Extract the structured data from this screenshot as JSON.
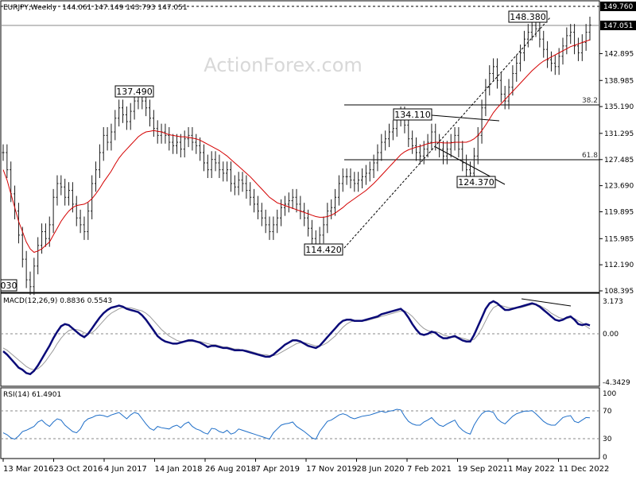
{
  "watermark": "ActionForex.com",
  "colors": {
    "price": "#1a1a1a",
    "sma": "#d40000",
    "macd": "#0a0a78",
    "signal": "#9a9a9a",
    "rsi": "#1e6ec8",
    "frame": "#000000",
    "trend": "#000000"
  },
  "chart_data": [
    {
      "type": "candlestick",
      "title": "EURJPY,Weekly",
      "ohlc": "144.061 147.149 143.793 147.051",
      "current_price_label": "147.051",
      "top_label": "149.760",
      "y_ticks": [
        "142.895",
        "138.985",
        "135.190",
        "131.295",
        "127.485",
        "123.690",
        "119.895",
        "115.985",
        "112.190",
        "108.395"
      ],
      "ylim": [
        108.395,
        149.76
      ],
      "x_ticks": [
        "13 Mar 2016",
        "23 Oct 2016",
        "4 Jun 2017",
        "14 Jan 2018",
        "26 Aug 2018",
        "7 Apr 2019",
        "17 Nov 2019",
        "28 Jun 2020",
        "7 Feb 2021",
        "19 Sep 2021",
        "1 May 2022",
        "11 Dec 2022"
      ],
      "annotations": [
        "148.380",
        "137.490",
        "134.110",
        "124.370",
        "114.420",
        "030"
      ],
      "fib_labels": [
        "38.2",
        "61.8"
      ],
      "fib_levels": [
        135.2,
        127.1
      ],
      "series": [
        {
          "values": [
            128.5,
            126.0,
            122.5,
            120.0,
            116.5,
            113.0,
            110.0,
            109.0,
            112.0,
            115.0,
            117.0,
            116.0,
            118.0,
            122.0,
            124.0,
            123.5,
            122.0,
            123.0,
            121.0,
            119.0,
            118.0,
            117.0,
            120.0,
            124.0,
            126.0,
            128.5,
            131.0,
            130.0,
            131.5,
            133.5,
            135.0,
            134.0,
            133.0,
            134.5,
            136.0,
            137.0,
            136.0,
            135.0,
            133.5,
            132.0,
            131.0,
            131.5,
            131.0,
            130.0,
            129.5,
            130.0,
            129.0,
            130.5,
            131.0,
            130.0,
            129.5,
            128.5,
            127.0,
            126.0,
            127.5,
            127.0,
            126.0,
            125.5,
            126.0,
            124.0,
            123.5,
            124.5,
            124.0,
            123.0,
            122.0,
            121.0,
            120.0,
            119.0,
            118.0,
            117.0,
            118.0,
            119.0,
            120.5,
            121.0,
            121.5,
            122.0,
            121.0,
            120.0,
            119.0,
            117.5,
            116.0,
            115.0,
            116.5,
            118.0,
            120.0,
            120.5,
            122.0,
            124.0,
            125.0,
            125.0,
            124.5,
            124.0,
            124.5,
            125.0,
            125.5,
            126.0,
            127.0,
            128.5,
            130.0,
            130.5,
            131.5,
            132.0,
            133.5,
            134.0,
            132.5,
            130.5,
            129.5,
            128.5,
            128.0,
            129.0,
            130.0,
            131.5,
            130.0,
            129.0,
            128.0,
            129.0,
            130.0,
            131.0,
            129.0,
            127.0,
            126.0,
            125.5,
            128.0,
            131.0,
            135.0,
            138.0,
            140.0,
            141.0,
            139.0,
            137.0,
            136.0,
            138.0,
            140.0,
            141.5,
            143.0,
            145.0,
            146.0,
            147.0,
            146.5,
            145.0,
            143.5,
            142.0,
            141.5,
            141.0,
            142.5,
            144.0,
            145.5,
            146.0,
            144.0,
            143.0,
            144.5,
            146.0,
            147.051
          ],
          "sma": [
            126.0,
            124.5,
            122.5,
            120.5,
            118.5,
            117.0,
            115.5,
            114.5,
            114.0,
            114.2,
            114.5,
            115.0,
            115.5,
            116.5,
            117.5,
            118.5,
            119.3,
            120.0,
            120.5,
            120.8,
            120.9,
            121.0,
            121.3,
            121.8,
            122.5,
            123.3,
            124.2,
            125.0,
            125.8,
            126.8,
            127.7,
            128.4,
            129.0,
            129.6,
            130.2,
            130.8,
            131.2,
            131.5,
            131.6,
            131.7,
            131.6,
            131.5,
            131.3,
            131.1,
            131.0,
            130.9,
            130.8,
            130.8,
            130.7,
            130.6,
            130.5,
            130.3,
            130.0,
            129.7,
            129.4,
            129.1,
            128.8,
            128.4,
            128.0,
            127.5,
            127.0,
            126.5,
            126.0,
            125.5,
            125.0,
            124.4,
            123.8,
            123.2,
            122.6,
            122.0,
            121.6,
            121.2,
            121.0,
            120.8,
            120.6,
            120.4,
            120.2,
            120.0,
            119.8,
            119.6,
            119.4,
            119.2,
            119.1,
            119.1,
            119.2,
            119.4,
            119.7,
            120.1,
            120.5,
            121.0,
            121.4,
            121.8,
            122.2,
            122.6,
            123.0,
            123.5,
            124.0,
            124.6,
            125.2,
            125.8,
            126.4,
            127.0,
            127.6,
            128.2,
            128.6,
            128.9,
            129.1,
            129.3,
            129.4,
            129.6,
            129.8,
            129.9,
            130.0,
            130.0,
            129.9,
            129.9,
            129.9,
            130.0,
            130.0,
            130.0,
            130.0,
            130.2,
            130.5,
            131.0,
            131.7,
            132.5,
            133.4,
            134.3,
            135.0,
            135.6,
            136.2,
            136.8,
            137.4,
            138.0,
            138.6,
            139.2,
            139.8,
            140.4,
            140.9,
            141.4,
            141.8,
            142.1,
            142.4,
            142.7,
            143.0,
            143.3,
            143.6,
            143.9,
            144.1,
            144.3,
            144.5,
            144.7,
            144.9
          ]
        }
      ]
    },
    {
      "type": "line",
      "title": "MACD(12,26,9) 0.8836 0.5543",
      "y_ticks": [
        "3.173",
        "0.00",
        "-4.3429"
      ],
      "ylim": [
        -4.3429,
        3.173
      ],
      "series": [
        {
          "values": [
            -1.5,
            -1.8,
            -2.2,
            -2.6,
            -3.0,
            -3.2,
            -3.5,
            -3.6,
            -3.3,
            -2.8,
            -2.2,
            -1.6,
            -1.0,
            -0.3,
            0.3,
            0.8,
            1.0,
            0.9,
            0.6,
            0.3,
            0.0,
            -0.2,
            0.1,
            0.6,
            1.1,
            1.6,
            2.0,
            2.3,
            2.5,
            2.6,
            2.7,
            2.6,
            2.4,
            2.3,
            2.2,
            2.1,
            1.8,
            1.4,
            0.9,
            0.4,
            -0.1,
            -0.4,
            -0.6,
            -0.7,
            -0.8,
            -0.8,
            -0.7,
            -0.6,
            -0.5,
            -0.5,
            -0.6,
            -0.7,
            -0.9,
            -1.1,
            -1.0,
            -1.0,
            -1.1,
            -1.2,
            -1.2,
            -1.3,
            -1.4,
            -1.4,
            -1.4,
            -1.5,
            -1.6,
            -1.7,
            -1.8,
            -1.9,
            -2.0,
            -2.0,
            -1.8,
            -1.5,
            -1.2,
            -0.9,
            -0.7,
            -0.5,
            -0.5,
            -0.6,
            -0.8,
            -1.0,
            -1.1,
            -1.2,
            -1.0,
            -0.6,
            -0.2,
            0.2,
            0.6,
            1.0,
            1.3,
            1.4,
            1.4,
            1.3,
            1.3,
            1.3,
            1.4,
            1.5,
            1.6,
            1.7,
            1.9,
            2.0,
            2.1,
            2.2,
            2.3,
            2.4,
            2.1,
            1.6,
            1.0,
            0.5,
            0.1,
            0.0,
            0.1,
            0.3,
            0.2,
            -0.1,
            -0.3,
            -0.3,
            -0.2,
            -0.1,
            -0.3,
            -0.5,
            -0.6,
            -0.6,
            0.0,
            0.8,
            1.6,
            2.4,
            2.9,
            3.1,
            2.9,
            2.6,
            2.3,
            2.3,
            2.4,
            2.5,
            2.6,
            2.7,
            2.8,
            2.9,
            2.8,
            2.6,
            2.3,
            2.0,
            1.7,
            1.4,
            1.3,
            1.4,
            1.6,
            1.7,
            1.4,
            1.0,
            0.9,
            1.0,
            0.8836
          ]
        },
        {
          "values": [
            -1.2,
            -1.4,
            -1.7,
            -2.0,
            -2.3,
            -2.6,
            -2.9,
            -3.1,
            -3.2,
            -3.1,
            -2.8,
            -2.4,
            -1.9,
            -1.4,
            -0.8,
            -0.3,
            0.1,
            0.4,
            0.5,
            0.5,
            0.4,
            0.2,
            0.1,
            0.2,
            0.5,
            0.9,
            1.3,
            1.7,
            2.0,
            2.2,
            2.4,
            2.5,
            2.5,
            2.5,
            2.4,
            2.3,
            2.2,
            2.0,
            1.7,
            1.3,
            0.9,
            0.5,
            0.2,
            -0.1,
            -0.3,
            -0.5,
            -0.6,
            -0.6,
            -0.6,
            -0.6,
            -0.6,
            -0.6,
            -0.7,
            -0.8,
            -0.9,
            -0.9,
            -1.0,
            -1.1,
            -1.1,
            -1.2,
            -1.3,
            -1.3,
            -1.4,
            -1.4,
            -1.5,
            -1.6,
            -1.7,
            -1.8,
            -1.8,
            -1.9,
            -1.9,
            -1.8,
            -1.6,
            -1.4,
            -1.2,
            -1.0,
            -0.8,
            -0.7,
            -0.7,
            -0.8,
            -0.9,
            -1.0,
            -1.0,
            -0.9,
            -0.7,
            -0.4,
            -0.1,
            0.3,
            0.7,
            1.0,
            1.2,
            1.3,
            1.3,
            1.3,
            1.3,
            1.4,
            1.5,
            1.6,
            1.7,
            1.8,
            1.9,
            2.0,
            2.1,
            2.2,
            2.2,
            2.0,
            1.7,
            1.3,
            0.9,
            0.6,
            0.4,
            0.3,
            0.3,
            0.2,
            0.0,
            -0.1,
            -0.2,
            -0.2,
            -0.2,
            -0.3,
            -0.4,
            -0.5,
            -0.4,
            0.0,
            0.6,
            1.3,
            2.0,
            2.5,
            2.7,
            2.7,
            2.6,
            2.5,
            2.5,
            2.5,
            2.5,
            2.6,
            2.7,
            2.8,
            2.8,
            2.7,
            2.5,
            2.3,
            2.0,
            1.8,
            1.6,
            1.5,
            1.5,
            1.6,
            1.5,
            1.3,
            1.1,
            0.8,
            0.5543
          ]
        }
      ]
    },
    {
      "type": "line",
      "title": "RSI(14) 61.4901",
      "y_ticks": [
        "100",
        "70",
        "30",
        "0"
      ],
      "ylim": [
        0,
        100
      ],
      "series": [
        {
          "values": [
            38,
            35,
            30,
            28,
            33,
            40,
            42,
            45,
            48,
            55,
            58,
            52,
            48,
            55,
            60,
            58,
            50,
            45,
            40,
            38,
            44,
            55,
            60,
            62,
            65,
            66,
            65,
            63,
            66,
            68,
            70,
            65,
            60,
            66,
            70,
            68,
            60,
            52,
            45,
            42,
            48,
            46,
            45,
            44,
            48,
            50,
            46,
            52,
            55,
            48,
            44,
            42,
            38,
            36,
            45,
            44,
            40,
            38,
            42,
            36,
            38,
            44,
            42,
            40,
            38,
            36,
            34,
            32,
            30,
            28,
            38,
            44,
            50,
            52,
            53,
            55,
            48,
            44,
            40,
            35,
            30,
            28,
            40,
            48,
            56,
            58,
            62,
            66,
            68,
            66,
            62,
            60,
            62,
            64,
            65,
            66,
            68,
            70,
            72,
            70,
            72,
            73,
            75,
            74,
            64,
            56,
            52,
            50,
            50,
            55,
            58,
            62,
            55,
            50,
            48,
            52,
            55,
            58,
            48,
            42,
            38,
            36,
            50,
            60,
            68,
            72,
            72,
            70,
            60,
            55,
            52,
            58,
            64,
            68,
            70,
            72,
            72,
            73,
            68,
            62,
            56,
            52,
            50,
            50,
            56,
            62,
            64,
            65,
            56,
            54,
            58,
            62,
            61.4901
          ]
        }
      ]
    }
  ]
}
